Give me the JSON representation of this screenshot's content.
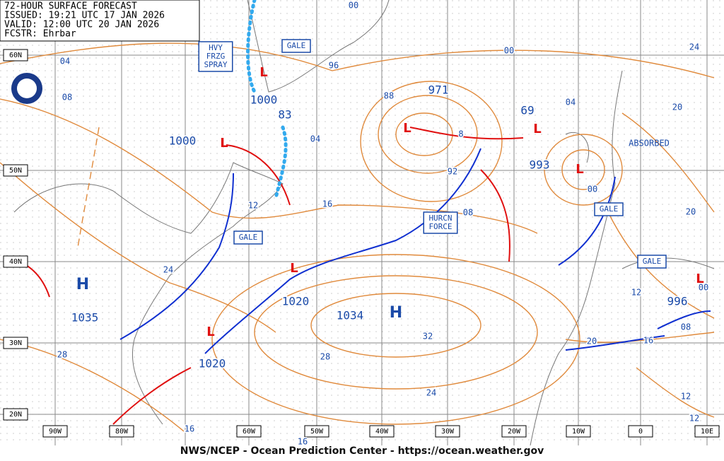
{
  "header": {
    "lines": [
      "72-HOUR SURFACE FORECAST",
      "ISSUED: 19:21 UTC 17 JAN 2026",
      "VALID: 12:00 UTC 20 JAN 2026",
      "FCSTR: Ehrbar"
    ]
  },
  "grid": {
    "lat_labels": [
      "60N",
      "50N",
      "40N",
      "30N",
      "20N"
    ],
    "lon_labels": [
      "90W",
      "80W",
      "60W",
      "50W",
      "40W",
      "30W",
      "20W",
      "10W",
      "0",
      "10E"
    ]
  },
  "highs": [
    {
      "symbol": "H",
      "pressure": "1035"
    },
    {
      "symbol": "H",
      "pressure": "1034"
    }
  ],
  "lows": [
    {
      "symbol": "L",
      "pressure": "1000"
    },
    {
      "symbol": "L",
      "pressure": "1000"
    },
    {
      "symbol": "L",
      "pressure": "83"
    },
    {
      "symbol": "L",
      "pressure": "971"
    },
    {
      "symbol": "L",
      "pressure": "69"
    },
    {
      "symbol": "L",
      "pressure": "993"
    },
    {
      "symbol": "L",
      "pressure": "1020"
    },
    {
      "symbol": "L",
      "pressure": "1020"
    },
    {
      "symbol": "L",
      "pressure": "996"
    }
  ],
  "isobar_labels": [
    "04",
    "08",
    "96",
    "00",
    "00",
    "04",
    "24",
    "20",
    "88",
    "8",
    "92",
    "04",
    "16",
    "12",
    "08",
    "00",
    "20",
    "24",
    "28",
    "32",
    "28",
    "24",
    "16",
    "16",
    "20",
    "16",
    "12",
    "00",
    "08",
    "12",
    "12"
  ],
  "warnings": [
    {
      "lines": [
        "HVY",
        "FRZG",
        "SPRAY"
      ]
    },
    {
      "lines": [
        "GALE"
      ]
    },
    {
      "lines": [
        "GALE"
      ]
    },
    {
      "lines": [
        "GALE"
      ]
    },
    {
      "lines": [
        "GALE"
      ]
    },
    {
      "lines": [
        "HURCN",
        "FORCE"
      ]
    }
  ],
  "notes": [
    "ABSORBED"
  ],
  "footer": "NWS/NCEP - Ocean Prediction Center - https://ocean.weather.gov"
}
